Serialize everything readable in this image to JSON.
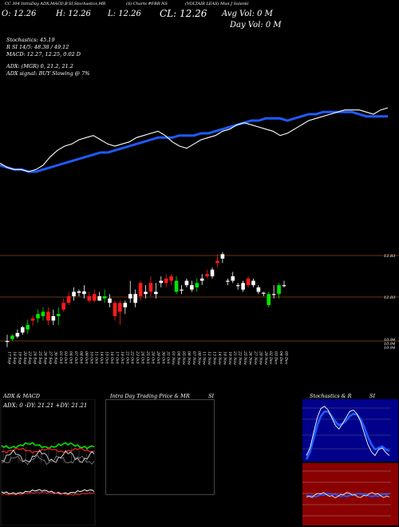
{
  "header": {
    "line1": "CC 304 IntraDay ADX,MACD,B",
    "line1b": "SI,Stochastics,MR",
    "line1c": "(S) Charts #FBR NS",
    "line1d": "(VOLTAIR LEAS) Mun J Solanki",
    "open": "O: 12.26",
    "high": "H: 12.26",
    "low": "L: 12.26",
    "close": "CL: 12.26",
    "avg_vol": "Avg Vol: 0  M",
    "day_vol": "Day Vol: 0  M"
  },
  "indicators": {
    "stochastics": "Stochastics: 45.19",
    "rsi": "R          SI 14/5: 48.38 / 49.12",
    "macd": "MACD: 12.27,  12.25,  0.02  D",
    "adx": "ADX:                    (MGR) 0,  21.2,  21.2",
    "adx_signal": "ADX  signal:                        BUY Slowing @ 7%"
  },
  "panels": {
    "adx_title": "ADX  & MACD",
    "adx_readout": "ADX: 0   -DY: 21.21  +DY: 21.21",
    "intraday_title": "Intra  Day Trading Price  & MR",
    "intraday_si": "SI",
    "stoch_title": "Stochastics & R",
    "stoch_si": "SI"
  },
  "chart_data": {
    "type": "candlestick",
    "price_levels": [
      "12.83",
      "12.03",
      "10.94",
      "10.94",
      "10.94"
    ],
    "dates": [
      "17 Sep",
      "18 Sep",
      "19 Sep",
      "20 Sep",
      "23 Sep",
      "24 Sep",
      "25 Sep",
      "26 Sep",
      "27 Sep",
      "30 Sep",
      "01 Oct",
      "03 Oct",
      "04 Oct",
      "07 Oct",
      "08 Oct",
      "09 Oct",
      "10 Oct",
      "11 Oct",
      "14 Oct",
      "15 Oct",
      "16 Oct",
      "17 Oct",
      "18 Oct",
      "21 Oct",
      "22 Oct",
      "23 Oct",
      "24 Oct",
      "25 Oct",
      "28 Oct",
      "29 Oct",
      "30 Oct",
      "31 Oct",
      "01 Nov",
      "04 Nov",
      "05 Nov",
      "06 Nov",
      "07 Nov",
      "08 Nov",
      "11 Nov",
      "12 Nov",
      "13 Nov",
      "14 Nov",
      "18 Nov",
      "19 Nov",
      "21 Nov",
      "22 Nov",
      "25 Nov",
      "26 Nov",
      "27 Nov",
      "28 Nov",
      "29 Nov",
      "02 Dec",
      "03 Dec",
      "04 Dec",
      "05 Dec"
    ],
    "ylim": [
      10.85,
      13.05
    ],
    "candles": [
      {
        "o": 10.94,
        "h": 11.08,
        "l": 10.8,
        "c": 10.94,
        "col": "white"
      },
      {
        "o": 10.98,
        "h": 11.1,
        "l": 10.94,
        "c": 11.06,
        "col": "green"
      },
      {
        "o": 11.04,
        "h": 11.2,
        "l": 11.0,
        "c": 11.12,
        "col": "white"
      },
      {
        "o": 11.13,
        "h": 11.28,
        "l": 11.08,
        "c": 11.25,
        "col": "white"
      },
      {
        "o": 11.2,
        "h": 11.42,
        "l": 11.1,
        "c": 11.3,
        "col": "green"
      },
      {
        "o": 11.4,
        "h": 11.52,
        "l": 11.28,
        "c": 11.45,
        "col": "red"
      },
      {
        "o": 11.45,
        "h": 11.65,
        "l": 11.35,
        "c": 11.55,
        "col": "green"
      },
      {
        "o": 11.5,
        "h": 11.7,
        "l": 11.4,
        "c": 11.6,
        "col": "green"
      },
      {
        "o": 11.6,
        "h": 11.7,
        "l": 11.3,
        "c": 11.4,
        "col": "red"
      },
      {
        "o": 11.4,
        "h": 11.65,
        "l": 11.3,
        "c": 11.5,
        "col": "white"
      },
      {
        "o": 11.5,
        "h": 11.7,
        "l": 11.3,
        "c": 11.55,
        "col": "green"
      },
      {
        "o": 11.65,
        "h": 11.9,
        "l": 11.6,
        "c": 11.8,
        "col": "red"
      },
      {
        "o": 11.8,
        "h": 12.05,
        "l": 11.75,
        "c": 11.95,
        "col": "red"
      },
      {
        "o": 11.95,
        "h": 12.15,
        "l": 11.85,
        "c": 12.05,
        "col": "white"
      },
      {
        "o": 12.03,
        "h": 12.1,
        "l": 11.95,
        "c": 12.06,
        "col": "white"
      },
      {
        "o": 12.0,
        "h": 12.2,
        "l": 11.9,
        "c": 12.06,
        "col": "white"
      },
      {
        "o": 11.95,
        "h": 12.05,
        "l": 11.8,
        "c": 11.85,
        "col": "red"
      },
      {
        "o": 11.85,
        "h": 12.1,
        "l": 11.8,
        "c": 12.0,
        "col": "red"
      },
      {
        "o": 11.95,
        "h": 12.05,
        "l": 11.85,
        "c": 11.85,
        "col": "white"
      },
      {
        "o": 11.95,
        "h": 12.1,
        "l": 11.8,
        "c": 11.9,
        "col": "green"
      },
      {
        "o": 11.9,
        "h": 12.0,
        "l": 11.7,
        "c": 11.8,
        "col": "white"
      },
      {
        "o": 11.8,
        "h": 11.85,
        "l": 11.4,
        "c": 11.5,
        "col": "red"
      },
      {
        "o": 11.6,
        "h": 11.85,
        "l": 11.3,
        "c": 11.8,
        "col": "red"
      },
      {
        "o": 11.8,
        "h": 11.85,
        "l": 11.55,
        "c": 11.7,
        "col": "white"
      },
      {
        "o": 11.9,
        "h": 12.3,
        "l": 11.8,
        "c": 12.0,
        "col": "white"
      },
      {
        "o": 12.0,
        "h": 12.1,
        "l": 11.7,
        "c": 11.8,
        "col": "white"
      },
      {
        "o": 12.25,
        "h": 12.3,
        "l": 11.85,
        "c": 11.95,
        "col": "red"
      },
      {
        "o": 12.0,
        "h": 12.2,
        "l": 11.9,
        "c": 12.05,
        "col": "white"
      },
      {
        "o": 12.05,
        "h": 12.4,
        "l": 11.95,
        "c": 12.25,
        "col": "red"
      },
      {
        "o": 12.05,
        "h": 12.25,
        "l": 11.9,
        "c": 12.0,
        "col": "white"
      },
      {
        "o": 12.25,
        "h": 12.4,
        "l": 12.15,
        "c": 12.3,
        "col": "white"
      },
      {
        "o": 12.35,
        "h": 12.45,
        "l": 12.15,
        "c": 12.25,
        "col": "red"
      },
      {
        "o": 12.3,
        "h": 12.45,
        "l": 12.2,
        "c": 12.4,
        "col": "red"
      },
      {
        "o": 12.3,
        "h": 12.4,
        "l": 12.0,
        "c": 12.05,
        "col": "green"
      },
      {
        "o": 12.1,
        "h": 12.2,
        "l": 12.0,
        "c": 12.1,
        "col": "white"
      },
      {
        "o": 12.3,
        "h": 12.35,
        "l": 12.15,
        "c": 12.2,
        "col": "white"
      },
      {
        "o": 12.2,
        "h": 12.3,
        "l": 12.05,
        "c": 12.1,
        "col": "white"
      },
      {
        "o": 12.25,
        "h": 12.35,
        "l": 12.05,
        "c": 12.15,
        "col": "green"
      },
      {
        "o": 12.3,
        "h": 12.45,
        "l": 12.2,
        "c": 12.35,
        "col": "white"
      },
      {
        "o": 12.45,
        "h": 12.55,
        "l": 12.35,
        "c": 12.4,
        "col": "red"
      },
      {
        "o": 12.4,
        "h": 12.6,
        "l": 12.35,
        "c": 12.55,
        "col": "white"
      },
      {
        "o": 12.75,
        "h": 12.9,
        "l": 12.6,
        "c": 12.7,
        "col": "red"
      },
      {
        "o": 12.8,
        "h": 12.95,
        "l": 12.7,
        "c": 12.9,
        "col": "white"
      },
      {
        "o": 12.3,
        "h": 12.35,
        "l": 12.2,
        "c": 12.3,
        "col": "white"
      },
      {
        "o": 12.4,
        "h": 12.5,
        "l": 12.25,
        "c": 12.3,
        "col": "white"
      },
      {
        "o": 12.2,
        "h": 12.25,
        "l": 12.1,
        "c": 12.2,
        "col": "white"
      },
      {
        "o": 12.25,
        "h": 12.3,
        "l": 12.05,
        "c": 12.1,
        "col": "white"
      },
      {
        "o": 12.35,
        "h": 12.4,
        "l": 12.15,
        "c": 12.2,
        "col": "red"
      },
      {
        "o": 12.3,
        "h": 12.35,
        "l": 12.15,
        "c": 12.2,
        "col": "white"
      },
      {
        "o": 12.15,
        "h": 12.2,
        "l": 12.0,
        "c": 12.05,
        "col": "white"
      },
      {
        "o": 12.03,
        "h": 12.05,
        "l": 11.95,
        "c": 12.03,
        "col": "white"
      },
      {
        "o": 12.0,
        "h": 12.05,
        "l": 11.7,
        "c": 11.75,
        "col": "green"
      },
      {
        "o": 12.0,
        "h": 12.2,
        "l": 11.9,
        "c": 12.0,
        "col": "white"
      },
      {
        "o": 12.0,
        "h": 12.25,
        "l": 11.9,
        "c": 12.2,
        "col": "green"
      },
      {
        "o": 12.2,
        "h": 12.3,
        "l": 12.15,
        "c": 12.2,
        "col": "white"
      }
    ],
    "upper_white": [
      55,
      57,
      58,
      58,
      59,
      58,
      56,
      52,
      49,
      47,
      46,
      44,
      43,
      42,
      44,
      46,
      47,
      46,
      45,
      43,
      42,
      41,
      40,
      42,
      45,
      47,
      48,
      46,
      44,
      43,
      42,
      40,
      39,
      37,
      36,
      37,
      38,
      39,
      40,
      42,
      41,
      39,
      37,
      35,
      34,
      33,
      32,
      31,
      30,
      30,
      30,
      31,
      32,
      30,
      29
    ],
    "upper_blue": [
      56,
      57,
      58,
      58,
      59,
      59,
      58,
      57,
      56,
      55,
      54,
      53,
      52,
      51,
      50,
      50,
      49,
      48,
      47,
      46,
      45,
      44,
      43,
      43,
      43,
      42,
      42,
      42,
      41,
      41,
      40,
      39,
      38,
      37,
      36,
      35,
      35,
      34,
      34,
      34,
      35,
      34,
      33,
      32,
      32,
      31,
      31,
      31,
      31,
      31,
      32,
      33,
      33,
      33,
      33
    ]
  }
}
